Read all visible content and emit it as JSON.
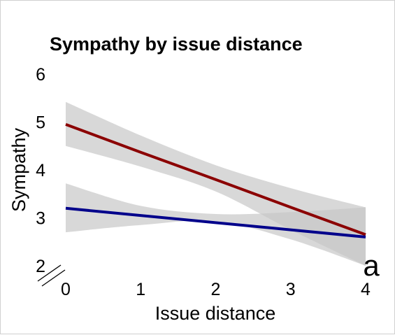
{
  "chart_data": {
    "type": "line",
    "title": "Sympathy by issue distance",
    "xlabel": "Issue distance",
    "ylabel": "Sympathy",
    "xlim": [
      0,
      4
    ],
    "ylim": [
      2,
      6
    ],
    "x_ticks": [
      "0",
      "1",
      "2",
      "3",
      "4"
    ],
    "y_ticks": [
      "2",
      "3",
      "4",
      "5",
      "6"
    ],
    "grid": false,
    "legend": "none",
    "panel_tag": "a",
    "series": [
      {
        "color": "#8b0000",
        "band_color": "#c8c8c8",
        "x": [
          0,
          1,
          2,
          3,
          4
        ],
        "values": [
          4.95,
          4.37,
          3.8,
          3.22,
          2.65
        ],
        "ci_lower": [
          4.5,
          4.07,
          3.55,
          2.75,
          2.0
        ],
        "ci_upper": [
          5.42,
          4.72,
          4.1,
          3.62,
          3.22
        ]
      },
      {
        "color": "#00008b",
        "band_color": "#c8c8c8",
        "x": [
          0,
          1,
          2,
          3,
          4
        ],
        "values": [
          3.2,
          3.05,
          2.9,
          2.75,
          2.6
        ],
        "ci_lower": [
          2.7,
          2.85,
          2.93,
          2.55,
          2.0
        ],
        "ci_upper": [
          3.72,
          3.25,
          3.08,
          3.12,
          3.22
        ]
      }
    ]
  }
}
